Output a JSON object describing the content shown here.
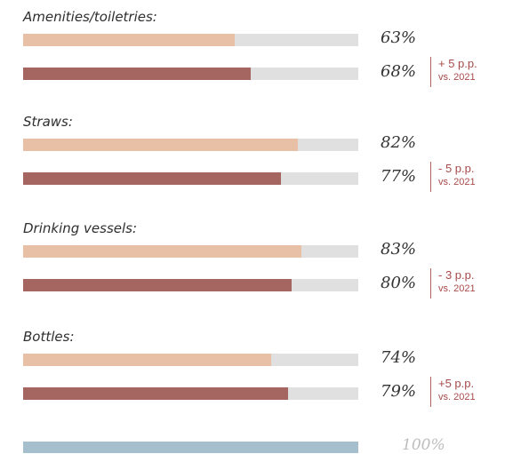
{
  "colors": {
    "series_a": "#e8c0a6",
    "series_b": "#a56560",
    "track": "#e0e0e0",
    "reference": "#a6bfcc",
    "delta_text": "#a84a4a"
  },
  "chart_data": {
    "type": "bar",
    "orientation": "horizontal",
    "categories": [
      "Amenities/toiletries:",
      "Straws:",
      "Drinking vessels:",
      "Bottles:"
    ],
    "series": [
      {
        "values": [
          63,
          82,
          83,
          74
        ],
        "labels": [
          "63%",
          "82%",
          "83%",
          "74%"
        ]
      },
      {
        "values": [
          68,
          77,
          80,
          79
        ],
        "labels": [
          "68%",
          "77%",
          "80%",
          "79%"
        ]
      }
    ],
    "annotations": [
      {
        "line1": "+ 5 p.p.",
        "line2": "vs. 2021"
      },
      {
        "line1": "- 5 p.p.",
        "line2": "vs. 2021"
      },
      {
        "line1": "- 3 p.p.",
        "line2": "vs. 2021"
      },
      {
        "line1": "+5 p.p.",
        "line2": "vs. 2021"
      }
    ],
    "reference": {
      "value": 100,
      "label": "100%"
    },
    "xlim": [
      0,
      100
    ]
  }
}
